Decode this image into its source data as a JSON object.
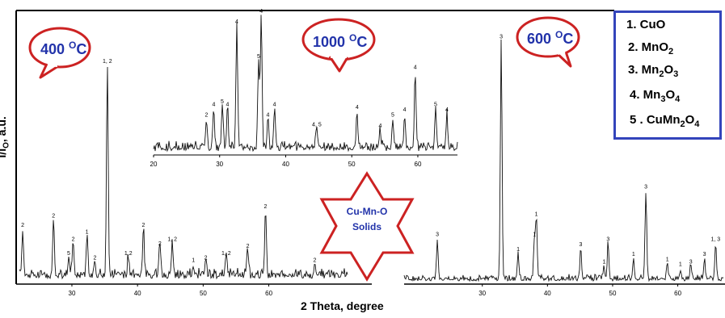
{
  "axes": {
    "xlabel": "2 Theta, degree",
    "ylabel_main": "I/I",
    "ylabel_sub": "O",
    "ylabel_tail": ", a.u."
  },
  "bubbles": [
    {
      "temp": "400",
      "unit": "C",
      "sup": "O"
    },
    {
      "temp": "1000",
      "unit": "C",
      "sup": "O"
    },
    {
      "temp": "600",
      "unit": "C",
      "sup": "O"
    }
  ],
  "star_label": [
    "Cu-Mn-O",
    "Solids"
  ],
  "legend": [
    {
      "num": "1.",
      "name": "CuO",
      "sub": ""
    },
    {
      "num": "2.",
      "name": "MnO",
      "sub": "2"
    },
    {
      "num": "3.",
      "name": "Mn",
      "sub": "2",
      "tail": "O",
      "tailsub": "3"
    },
    {
      "num": "4.",
      "name": "Mn",
      "sub": "3",
      "tail": "O",
      "tailsub": "4"
    },
    {
      "num": "5 .",
      "name": "CuMn",
      "sub": "2",
      "tail": "O",
      "tailsub": "4"
    }
  ],
  "colors": {
    "bubble_border": "#cc2222",
    "bubble_text": "#2233aa",
    "legend_border": "#3344bb",
    "star_border": "#cc2222",
    "star_text": "#2233aa",
    "trace": "#111111"
  },
  "chart_data": [
    {
      "type": "line",
      "name": "400 C",
      "x_ticks": [
        30,
        40,
        50,
        60
      ],
      "xlim": [
        22,
        72
      ],
      "peaks": [
        {
          "x": 22.5,
          "h": 0.2,
          "label": "2"
        },
        {
          "x": 27.2,
          "h": 0.24,
          "label": "2"
        },
        {
          "x": 30.2,
          "h": 0.14,
          "label": "2"
        },
        {
          "x": 29.5,
          "h": 0.08,
          "label": "5"
        },
        {
          "x": 32.3,
          "h": 0.17,
          "label": "1"
        },
        {
          "x": 33.5,
          "h": 0.06,
          "label": "2"
        },
        {
          "x": 35.4,
          "h": 0.9,
          "label": "1, 2"
        },
        {
          "x": 38.6,
          "h": 0.08,
          "label": "1,2"
        },
        {
          "x": 40.9,
          "h": 0.2,
          "label": "2"
        },
        {
          "x": 43.4,
          "h": 0.12,
          "label": "2"
        },
        {
          "x": 45.3,
          "h": 0.14,
          "label": "1, 2"
        },
        {
          "x": 48.5,
          "h": 0.05,
          "label": "1"
        },
        {
          "x": 50.4,
          "h": 0.06,
          "label": "2"
        },
        {
          "x": 53.5,
          "h": 0.08,
          "label": "1, 2"
        },
        {
          "x": 56.8,
          "h": 0.11,
          "label": "2"
        },
        {
          "x": 59.5,
          "h": 0.28,
          "label": "2"
        },
        {
          "x": 67.0,
          "h": 0.05,
          "label": "2"
        }
      ]
    },
    {
      "type": "line",
      "name": "1000 C",
      "x_ticks": [
        20,
        30,
        40,
        50,
        60
      ],
      "xlim": [
        20,
        66
      ],
      "peaks": [
        {
          "x": 28.0,
          "h": 0.22,
          "label": "2"
        },
        {
          "x": 29.1,
          "h": 0.3,
          "label": "4"
        },
        {
          "x": 30.4,
          "h": 0.32,
          "label": "5"
        },
        {
          "x": 31.2,
          "h": 0.3,
          "label": "4"
        },
        {
          "x": 32.6,
          "h": 0.92,
          "label": "4"
        },
        {
          "x": 35.9,
          "h": 0.66,
          "label": "5"
        },
        {
          "x": 36.3,
          "h": 1.0,
          "label": "4"
        },
        {
          "x": 37.3,
          "h": 0.22,
          "label": "4"
        },
        {
          "x": 38.3,
          "h": 0.3,
          "label": "4"
        },
        {
          "x": 44.7,
          "h": 0.15,
          "label": "4, 5"
        },
        {
          "x": 50.8,
          "h": 0.28,
          "label": "4"
        },
        {
          "x": 54.3,
          "h": 0.14,
          "label": "4"
        },
        {
          "x": 56.2,
          "h": 0.22,
          "label": "5"
        },
        {
          "x": 58.0,
          "h": 0.26,
          "label": "4"
        },
        {
          "x": 59.6,
          "h": 0.58,
          "label": "4"
        },
        {
          "x": 62.7,
          "h": 0.3,
          "label": "5"
        },
        {
          "x": 64.4,
          "h": 0.26,
          "label": "4"
        }
      ]
    },
    {
      "type": "line",
      "name": "600 C",
      "x_ticks": [
        30,
        40,
        50,
        60
      ],
      "xlim": [
        18,
        67
      ],
      "peaks": [
        {
          "x": 23.1,
          "h": 0.16,
          "label": "3"
        },
        {
          "x": 32.9,
          "h": 0.95,
          "label": "3"
        },
        {
          "x": 35.5,
          "h": 0.1,
          "label": "1"
        },
        {
          "x": 38.0,
          "h": 0.16,
          "label": "1"
        },
        {
          "x": 38.3,
          "h": 0.24,
          "label": "1"
        },
        {
          "x": 45.1,
          "h": 0.12,
          "label": "3"
        },
        {
          "x": 48.7,
          "h": 0.05,
          "label": "1"
        },
        {
          "x": 49.3,
          "h": 0.14,
          "label": "3"
        },
        {
          "x": 53.2,
          "h": 0.08,
          "label": "1"
        },
        {
          "x": 55.1,
          "h": 0.35,
          "label": "3"
        },
        {
          "x": 58.4,
          "h": 0.06,
          "label": "1"
        },
        {
          "x": 60.4,
          "h": 0.04,
          "label": "1"
        },
        {
          "x": 62.0,
          "h": 0.05,
          "label": "3"
        },
        {
          "x": 64.1,
          "h": 0.08,
          "label": "3"
        },
        {
          "x": 65.8,
          "h": 0.14,
          "label": "1, 3"
        }
      ]
    }
  ]
}
